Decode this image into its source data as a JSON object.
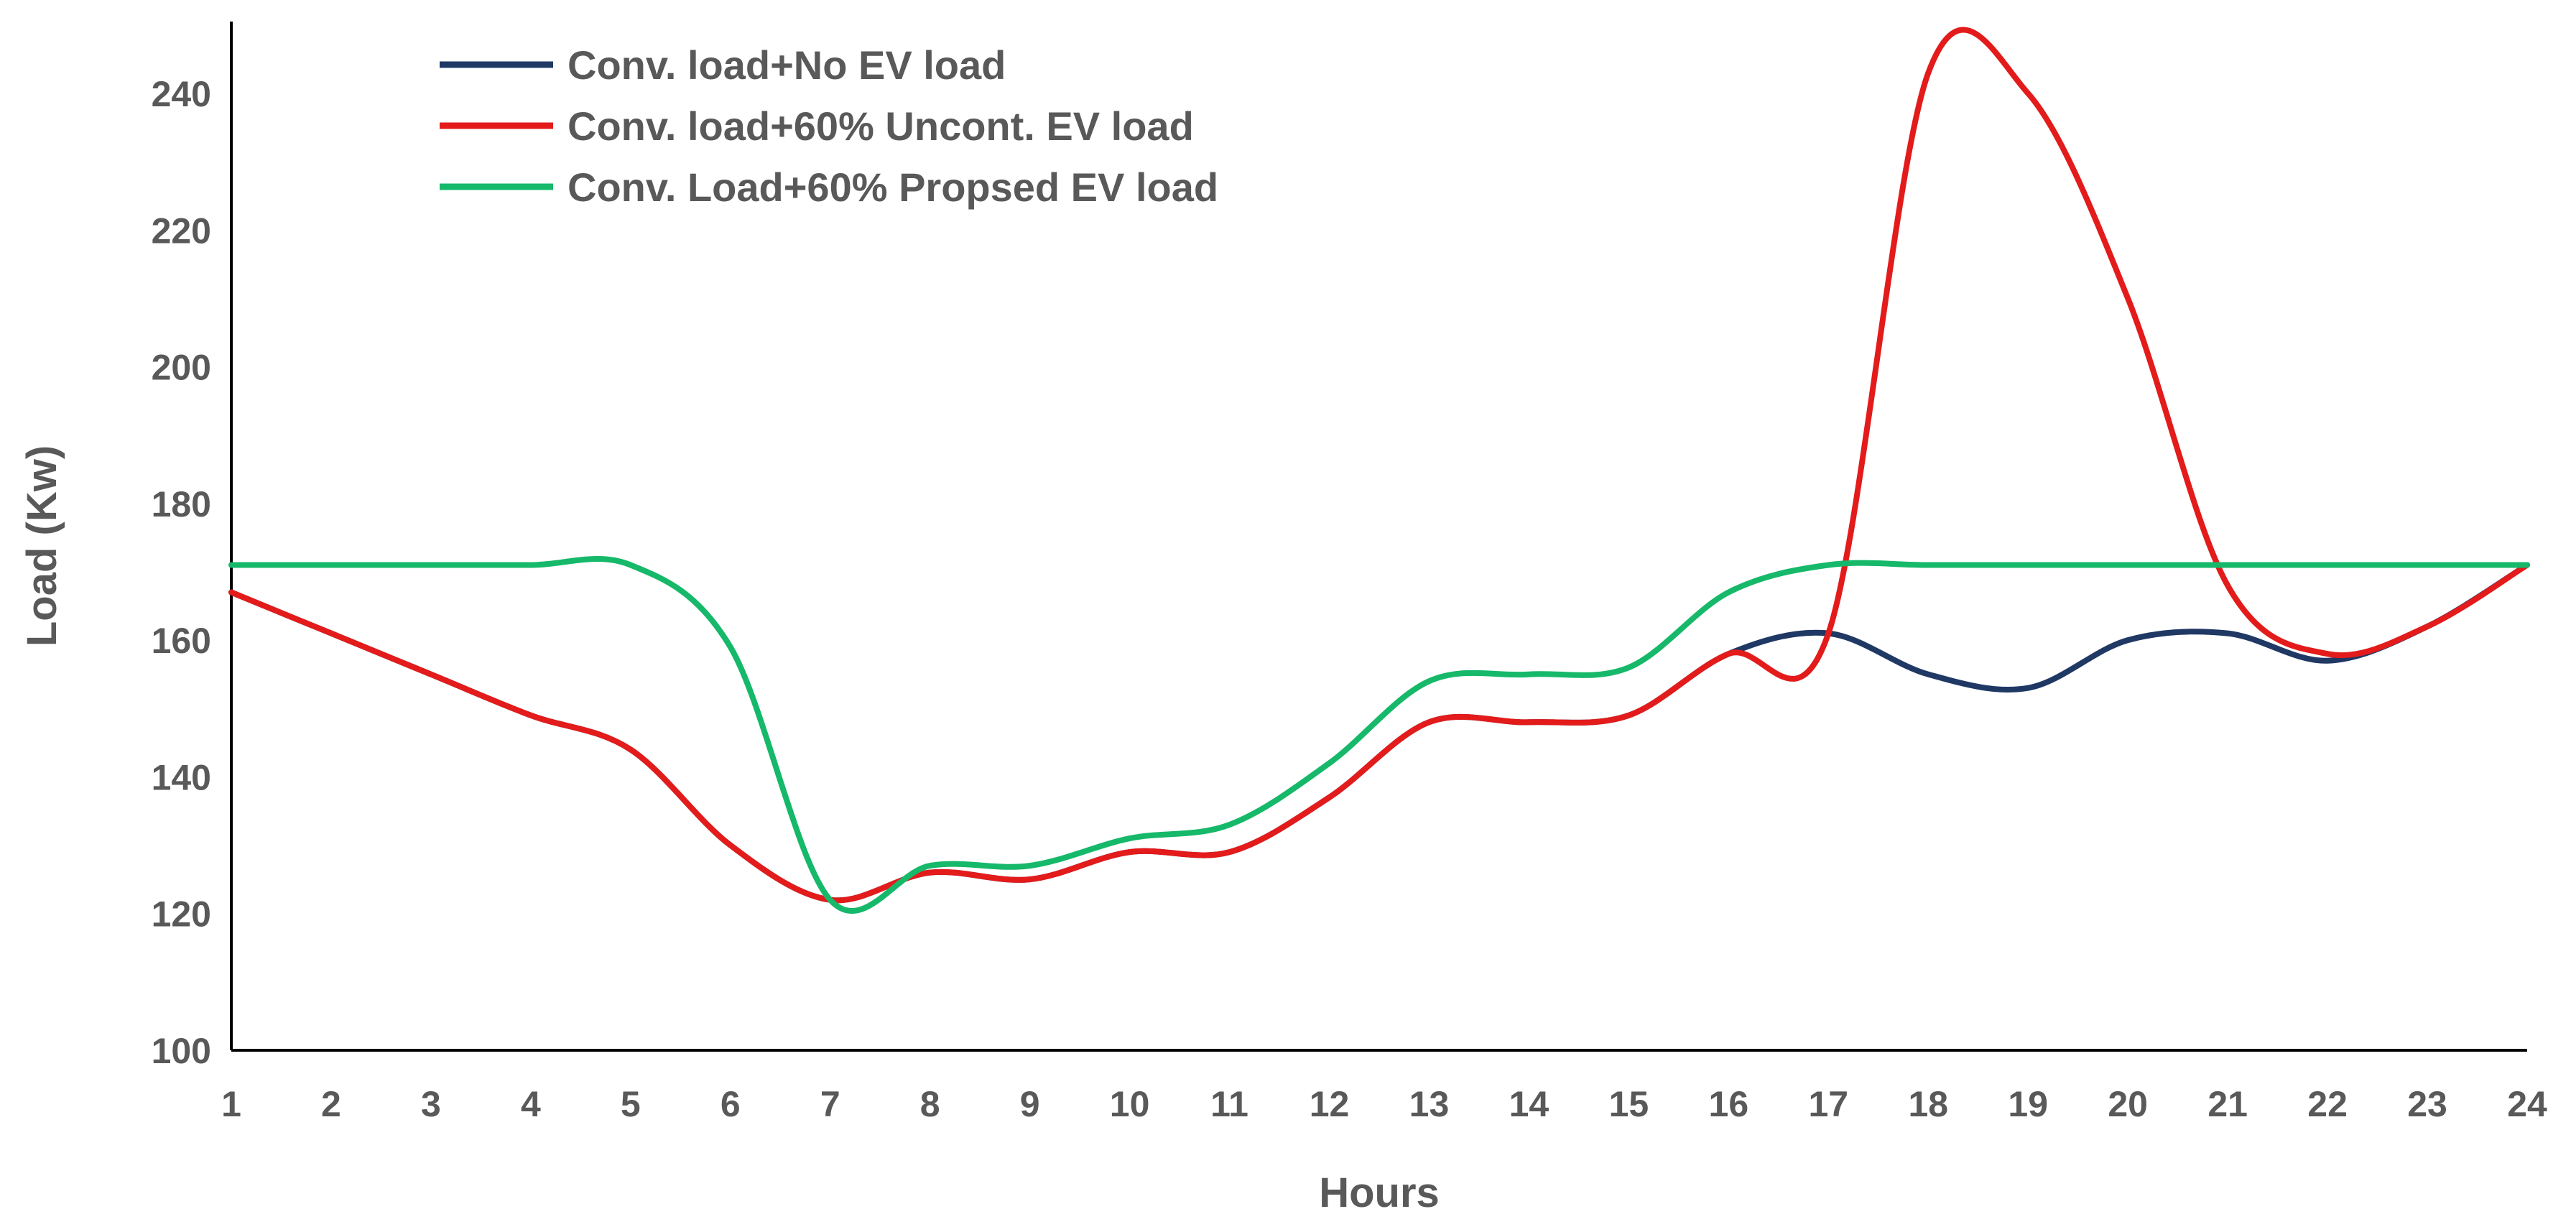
{
  "chart_data": {
    "type": "line",
    "title": "",
    "xlabel": "Hours",
    "ylabel": "Load (Kw)",
    "xlim": [
      1,
      24
    ],
    "ylim": [
      100,
      250
    ],
    "yticks": [
      100,
      120,
      140,
      160,
      180,
      200,
      220,
      240
    ],
    "xticks": [
      1,
      2,
      3,
      4,
      5,
      6,
      7,
      8,
      9,
      10,
      11,
      12,
      13,
      14,
      15,
      16,
      17,
      18,
      19,
      20,
      21,
      22,
      23,
      24
    ],
    "grid": false,
    "legend_position": "top-left",
    "x": [
      1,
      2,
      3,
      4,
      5,
      6,
      7,
      8,
      9,
      10,
      11,
      12,
      13,
      14,
      15,
      16,
      17,
      18,
      19,
      20,
      21,
      22,
      23,
      24
    ],
    "series": [
      {
        "name": "Conv. load+No EV load",
        "color": "#1f3864",
        "values": [
          167,
          161,
          155,
          149,
          144,
          130,
          122,
          126,
          125,
          129,
          129,
          137,
          148,
          148,
          149,
          158,
          161,
          155,
          153,
          160,
          161,
          157,
          162,
          171
        ]
      },
      {
        "name": "Conv. load+60% Uncont. EV load",
        "color": "#e31b1b",
        "values": [
          167,
          161,
          155,
          149,
          144,
          130,
          122,
          126,
          125,
          129,
          129,
          137,
          148,
          148,
          149,
          158,
          161,
          243,
          240,
          210,
          168,
          158,
          162,
          171
        ]
      },
      {
        "name": "Conv. Load+60% Propsed EV load",
        "color": "#16b86a",
        "values": [
          171,
          171,
          171,
          171,
          171,
          159,
          122,
          127,
          127,
          131,
          133,
          142,
          154,
          155,
          156,
          167,
          171,
          171,
          171,
          171,
          171,
          171,
          171,
          171
        ]
      }
    ]
  }
}
